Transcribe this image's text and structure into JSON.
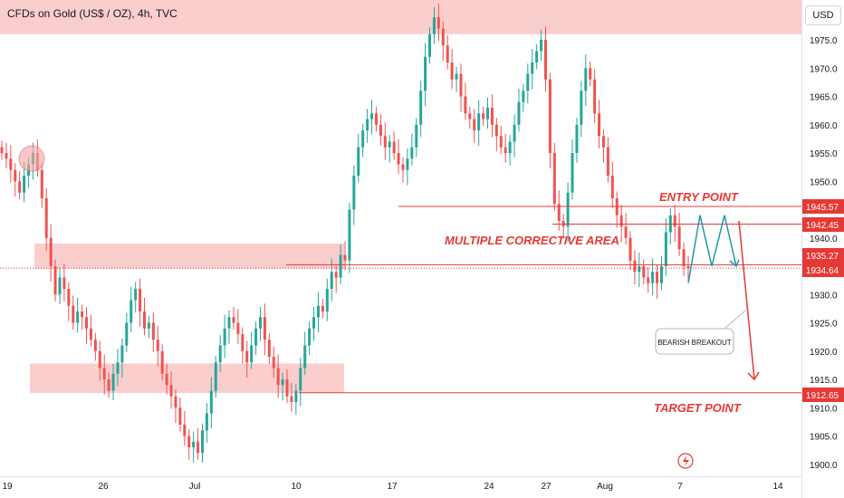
{
  "header": {
    "title": "CFDs on Gold (US$ / OZ), 4h, TVC"
  },
  "price_axis": {
    "currency": "USD"
  },
  "colors": {
    "bull": "#26a69a",
    "bear": "#ef5350",
    "zone": "#f7a5a5",
    "line": "#e53935",
    "teal_line": "#2196a6",
    "annotation_text": "#e53935"
  },
  "annotations": {
    "entry_point": "ENTRY POINT",
    "multiple_corrective_area": "MULTIPLE CORRECTIVE AREA",
    "target_point": "TARGET POINT",
    "bearish_breakout": "BEARISH BREAKOUT"
  },
  "chart_data": {
    "type": "candlestick",
    "title": "CFDs on Gold (US$ / OZ), 4h, TVC",
    "ylabel": "USD",
    "ylim": [
      1897,
      1980
    ],
    "y_ticks": [
      1900,
      1905,
      1910,
      1915,
      1920,
      1925,
      1930,
      1935,
      1940,
      1945,
      1950,
      1955,
      1960,
      1965,
      1970,
      1975
    ],
    "x_ticks": [
      "19",
      "26",
      "Jul",
      "10",
      "17",
      "24",
      "27",
      "Aug",
      "7",
      "14"
    ],
    "price_labels": [
      {
        "value": 1945.57,
        "label": "1945.57"
      },
      {
        "value": 1942.45,
        "label": "1942.45"
      },
      {
        "value": 1935.27,
        "label": "1935.27"
      },
      {
        "value": 1934.64,
        "label": "1934.64"
      },
      {
        "value": 1912.65,
        "label": "1912.65"
      }
    ],
    "zones": [
      {
        "name": "resistance",
        "y_low": 1976,
        "y_high": 1984
      },
      {
        "name": "corrective",
        "y_low": 1934.6,
        "y_high": 1939
      },
      {
        "name": "support",
        "y_low": 1912.6,
        "y_high": 1917.8
      }
    ],
    "closes": [
      1955,
      1954,
      1952,
      1950,
      1948,
      1951,
      1953,
      1955,
      1952,
      1947,
      1940,
      1935,
      1930,
      1933,
      1931,
      1928,
      1925,
      1927,
      1926,
      1924,
      1922,
      1920,
      1917,
      1915,
      1913,
      1916,
      1918,
      1921,
      1925,
      1929,
      1931,
      1927,
      1924,
      1925,
      1922,
      1920,
      1916,
      1914,
      1912,
      1910,
      1907,
      1905,
      1903,
      1904,
      1902,
      1906,
      1909,
      1913,
      1918,
      1921,
      1924,
      1926,
      1925,
      1923,
      1920,
      1918,
      1921,
      1924,
      1926,
      1922,
      1919,
      1917,
      1914,
      1915,
      1912,
      1911,
      1913,
      1917,
      1921,
      1924,
      1926,
      1928,
      1927,
      1931,
      1934,
      1933,
      1937,
      1936,
      1945,
      1951,
      1956,
      1959,
      1961,
      1962,
      1960,
      1958,
      1956,
      1957,
      1955,
      1953,
      1952,
      1954,
      1956,
      1960,
      1966,
      1972,
      1976,
      1979,
      1977,
      1974,
      1971,
      1968,
      1969,
      1965,
      1962,
      1961,
      1959,
      1962,
      1961,
      1963,
      1960,
      1958,
      1956,
      1955,
      1957,
      1960,
      1964,
      1966,
      1969,
      1971,
      1973,
      1975,
      1968,
      1955,
      1946,
      1943,
      1942,
      1948,
      1955,
      1960,
      1966,
      1970,
      1968,
      1962,
      1958,
      1956,
      1951,
      1947,
      1944,
      1942,
      1940,
      1936,
      1934,
      1935,
      1933,
      1932,
      1934,
      1932,
      1935,
      1941,
      1944,
      1942,
      1938,
      1935,
      1934.6
    ],
    "projection": [
      {
        "x_index": 160,
        "y": 1932
      },
      {
        "x_index": 164,
        "y": 1944
      },
      {
        "x_index": 168,
        "y": 1935
      },
      {
        "x_index": 172,
        "y": 1944
      },
      {
        "x_index": 176,
        "y": 1935
      }
    ],
    "forecast_arrow": {
      "from_y": 1943,
      "to_y": 1915
    }
  }
}
